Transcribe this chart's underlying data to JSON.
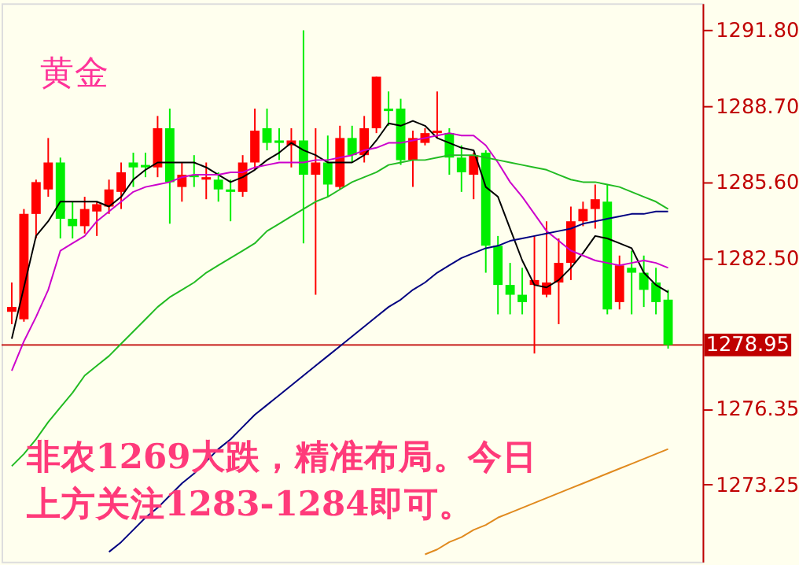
{
  "chart_data": {
    "type": "candlestick",
    "title": "黄金",
    "annotations": [
      "非农1269大跌，精准布局。今日",
      "上方关注1283-1284即可。"
    ],
    "categories": [
      null,
      null,
      null,
      null,
      null,
      null,
      null,
      null,
      null,
      null,
      null,
      null,
      null,
      null,
      null,
      null,
      null,
      null,
      null,
      null,
      null,
      null,
      null,
      null,
      null,
      null,
      null,
      null,
      null,
      null,
      null,
      null,
      null,
      null,
      null,
      null,
      null,
      null,
      null,
      null,
      null,
      null,
      null,
      null,
      null,
      null,
      null,
      null,
      null,
      null,
      null,
      null,
      null,
      null,
      null
    ],
    "ohlc": [
      [
        1280.3,
        1281.5,
        1279.8,
        1280.5
      ],
      [
        1280.0,
        1284.5,
        1279.9,
        1284.3
      ],
      [
        1284.3,
        1285.7,
        1283.3,
        1285.6
      ],
      [
        1285.3,
        1287.4,
        1285.0,
        1286.4
      ],
      [
        1286.4,
        1286.6,
        1283.3,
        1284.1
      ],
      [
        1284.1,
        1284.8,
        1283.3,
        1283.8
      ],
      [
        1283.8,
        1285.0,
        1283.5,
        1284.5
      ],
      [
        1284.4,
        1284.8,
        1283.4,
        1284.7
      ],
      [
        1284.6,
        1285.7,
        1284.3,
        1285.3
      ],
      [
        1285.2,
        1286.4,
        1284.5,
        1286.0
      ],
      [
        1286.4,
        1286.8,
        1285.4,
        1286.2
      ],
      [
        1286.3,
        1286.8,
        1285.8,
        1286.2
      ],
      [
        1286.2,
        1288.3,
        1285.8,
        1287.8
      ],
      [
        1287.8,
        1288.6,
        1283.9,
        1285.6
      ],
      [
        1285.4,
        1286.4,
        1284.8,
        1285.9
      ],
      [
        1285.9,
        1286.7,
        1285.4,
        1285.8
      ],
      [
        1285.7,
        1286.4,
        1284.9,
        1285.8
      ],
      [
        1285.7,
        1286.0,
        1284.8,
        1285.3
      ],
      [
        1285.3,
        1285.7,
        1284.0,
        1285.2
      ],
      [
        1285.2,
        1286.7,
        1285.0,
        1286.4
      ],
      [
        1286.4,
        1288.6,
        1286.1,
        1287.7
      ],
      [
        1287.8,
        1288.6,
        1286.9,
        1287.2
      ],
      [
        1287.3,
        1287.8,
        1286.5,
        1287.2
      ],
      [
        1287.1,
        1287.8,
        1286.2,
        1287.3
      ],
      [
        1287.3,
        1291.8,
        1283.1,
        1285.9
      ],
      [
        1285.9,
        1287.8,
        1281.0,
        1286.4
      ],
      [
        1286.4,
        1287.5,
        1285.0,
        1285.5
      ],
      [
        1285.4,
        1287.9,
        1285.3,
        1287.4
      ],
      [
        1287.4,
        1287.9,
        1286.4,
        1286.7
      ],
      [
        1286.7,
        1288.3,
        1286.4,
        1287.8
      ],
      [
        1287.8,
        1289.9,
        1287.6,
        1289.9
      ],
      [
        1288.6,
        1289.3,
        1287.9,
        1288.5
      ],
      [
        1288.6,
        1289.0,
        1286.3,
        1286.5
      ],
      [
        1286.5,
        1287.7,
        1285.4,
        1287.4
      ],
      [
        1287.2,
        1287.8,
        1287.1,
        1287.6
      ],
      [
        1287.6,
        1289.3,
        1287.4,
        1287.7
      ],
      [
        1287.6,
        1287.8,
        1285.9,
        1286.6
      ],
      [
        1286.6,
        1287.1,
        1285.2,
        1286.0
      ],
      [
        1285.9,
        1286.8,
        1284.9,
        1286.7
      ],
      [
        1286.8,
        1286.9,
        1281.9,
        1283.0
      ],
      [
        1283.0,
        1283.4,
        1280.2,
        1281.4
      ],
      [
        1281.4,
        1282.3,
        1280.2,
        1281.0
      ],
      [
        1281.0,
        1282.1,
        1280.2,
        1280.7
      ],
      [
        1281.4,
        1283.4,
        1278.6,
        1281.6
      ],
      [
        1281.0,
        1284.0,
        1280.9,
        1281.5
      ],
      [
        1281.5,
        1283.3,
        1279.8,
        1282.3
      ],
      [
        1282.3,
        1284.6,
        1281.6,
        1284.0
      ],
      [
        1284.0,
        1284.8,
        1283.8,
        1284.5
      ],
      [
        1284.5,
        1285.5,
        1283.7,
        1284.9
      ],
      [
        1284.8,
        1285.5,
        1280.2,
        1280.4
      ],
      [
        1280.7,
        1282.6,
        1280.4,
        1282.2
      ],
      [
        1282.1,
        1282.8,
        1280.2,
        1281.9
      ],
      [
        1281.9,
        1282.6,
        1280.5,
        1281.2
      ],
      [
        1281.5,
        1282.1,
        1280.2,
        1280.7
      ],
      [
        1280.8,
        1281.2,
        1278.8,
        1278.95
      ]
    ],
    "colors": [
      "#ff0000",
      "#ff0000",
      "#ff0000",
      "#ff0000",
      "#00ee00",
      "#00ee00",
      "#ff0000",
      "#ff0000",
      "#ff0000",
      "#ff0000",
      "#00ee00",
      "#00ee00",
      "#ff0000",
      "#00ee00",
      "#ff0000",
      "#00ee00",
      "#ff0000",
      "#00ee00",
      "#00ee00",
      "#ff0000",
      "#ff0000",
      "#00ee00",
      "#00ee00",
      "#ff0000",
      "#00ee00",
      "#ff0000",
      "#00ee00",
      "#ff0000",
      "#00ee00",
      "#ff0000",
      "#ff0000",
      "#00ee00",
      "#00ee00",
      "#ff0000",
      "#ff0000",
      "#ff0000",
      "#00ee00",
      "#00ee00",
      "#ff0000",
      "#00ee00",
      "#00ee00",
      "#00ee00",
      "#00ee00",
      "#ff0000",
      "#ff0000",
      "#ff0000",
      "#ff0000",
      "#ff0000",
      "#ff0000",
      "#00ee00",
      "#ff0000",
      "#00ee00",
      "#00ee00",
      "#00ee00",
      "#00ee00"
    ],
    "series": [
      {
        "type": "line",
        "color": "#000000",
        "values": [
          1279.2,
          null,
          1283.4,
          1284.0,
          1284.8,
          1284.8,
          1284.8,
          1284.8,
          1284.6,
          1285.0,
          1285.7,
          1286.1,
          1286.4,
          1286.4,
          1286.4,
          1286.4,
          1286.2,
          1285.9,
          1285.6,
          1285.8,
          1286.1,
          1286.5,
          1286.8,
          1287.2,
          1286.9,
          1286.7,
          1286.4,
          1286.4,
          1286.4,
          1286.7,
          1287.3,
          1288.0,
          1287.9,
          1288.1,
          1287.9,
          1287.4,
          1287.2,
          1287.0,
          1286.9,
          1285.4,
          1285.0,
          1283.7,
          1282.4,
          1281.4,
          1281.3,
          1281.6,
          1282.1,
          1282.7,
          1283.4,
          1283.3,
          1283.1,
          1282.9,
          1281.9,
          1281.4,
          1281.1
        ]
      },
      {
        "type": "line",
        "color": "#cc00cc",
        "values": [
          1277.9,
          1279.1,
          1280.1,
          1281.2,
          1282.8,
          1283.1,
          1283.4,
          1284.0,
          1284.4,
          1284.8,
          1285.2,
          1285.4,
          1285.5,
          1285.6,
          1285.8,
          1285.9,
          1285.9,
          1285.9,
          1286.0,
          1286.0,
          1286.2,
          1286.3,
          1286.4,
          1286.4,
          1286.4,
          1286.5,
          1286.5,
          1286.6,
          1286.7,
          1286.9,
          1287.0,
          1287.2,
          1287.2,
          1287.3,
          1287.4,
          1287.5,
          1287.6,
          1287.5,
          1287.5,
          1287.1,
          1286.4,
          1285.6,
          1285.0,
          1284.3,
          1283.6,
          1283.2,
          1282.8,
          1282.6,
          1282.4,
          1282.3,
          1282.2,
          1282.3,
          1282.4,
          1282.3,
          1282.1
        ]
      },
      {
        "type": "line",
        "color": "#22bb22",
        "values": [
          1274.0,
          1274.5,
          1275.1,
          1275.8,
          1276.4,
          1277.0,
          1277.7,
          1278.1,
          1278.5,
          1279.0,
          1279.5,
          1280.0,
          1280.5,
          1280.9,
          1281.2,
          1281.5,
          1281.9,
          1282.2,
          1282.5,
          1282.8,
          1283.1,
          1283.6,
          1283.9,
          1284.2,
          1284.5,
          1284.8,
          1285.0,
          1285.3,
          1285.6,
          1285.8,
          1286.0,
          1286.3,
          1286.4,
          1286.5,
          1286.5,
          1286.6,
          1286.7,
          1286.7,
          1286.7,
          1286.6,
          1286.5,
          1286.4,
          1286.3,
          1286.2,
          1286.1,
          1285.9,
          1285.7,
          1285.6,
          1285.6,
          1285.5,
          1285.4,
          1285.2,
          1285.0,
          1284.8,
          1284.5
        ]
      },
      {
        "type": "line",
        "color": "#000080",
        "values": [
          null,
          null,
          null,
          null,
          null,
          null,
          null,
          null,
          1270.5,
          1270.9,
          1271.4,
          1271.9,
          1272.3,
          1272.8,
          1273.3,
          1273.7,
          1274.2,
          1274.7,
          1275.1,
          1275.6,
          1276.1,
          1276.5,
          1276.9,
          1277.3,
          1277.7,
          1278.1,
          1278.5,
          1278.9,
          1279.3,
          1279.7,
          1280.1,
          1280.5,
          1280.8,
          1281.2,
          1281.5,
          1281.9,
          1282.2,
          1282.5,
          1282.7,
          1282.9,
          1283.0,
          1283.2,
          1283.3,
          1283.4,
          1283.5,
          1283.6,
          1283.7,
          1283.9,
          1284.0,
          1284.1,
          1284.2,
          1284.3,
          1284.3,
          1284.4,
          1284.4
        ]
      },
      {
        "type": "line",
        "color": "#e08a1e",
        "values": [
          null,
          null,
          null,
          null,
          null,
          null,
          null,
          null,
          null,
          null,
          null,
          null,
          null,
          null,
          null,
          null,
          null,
          null,
          null,
          null,
          null,
          null,
          null,
          null,
          null,
          null,
          null,
          null,
          null,
          null,
          null,
          null,
          null,
          null,
          1270.4,
          1270.6,
          1270.9,
          1271.1,
          1271.4,
          1271.6,
          1271.9,
          1272.1,
          1272.3,
          1272.5,
          1272.7,
          1272.9,
          1273.1,
          1273.3,
          1273.5,
          1273.7,
          1273.9,
          1274.1,
          1274.3,
          1274.5,
          1274.7
        ]
      }
    ],
    "ref_lines": [
      {
        "axis": "y",
        "value": 1278.95,
        "label": "1278.95",
        "color": "#c00000"
      }
    ],
    "ylim": [
      1270.1,
      1292.9
    ],
    "yticks": [
      {
        "value": 1273.25,
        "label": "1273.25"
      },
      {
        "value": 1276.35,
        "label": "1276.35"
      },
      {
        "value": 1282.5,
        "label": "1282.50"
      },
      {
        "value": 1285.6,
        "label": "1285.60"
      },
      {
        "value": 1288.7,
        "label": "1288.70"
      },
      {
        "value": 1291.8,
        "label": "1291.80"
      }
    ],
    "tick_labels": "y",
    "grid": false
  }
}
